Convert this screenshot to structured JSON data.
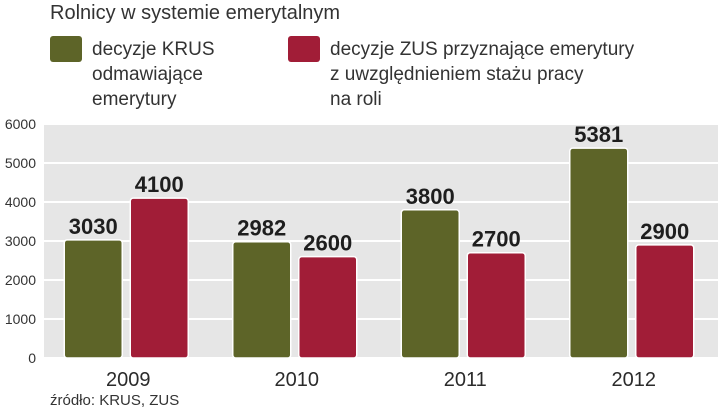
{
  "chart_data": {
    "type": "bar",
    "title": "Rolnicy w systemie emerytalnym",
    "categories": [
      "2009",
      "2010",
      "2011",
      "2012"
    ],
    "series": [
      {
        "name": "decyzje KRUS\nodmawiające\nemerytury",
        "color": "#5d6428",
        "values": [
          3030,
          2982,
          3800,
          5381
        ]
      },
      {
        "name": "decyzje ZUS przyznające emerytury\nz uwzględnieniem stażu pracy\nna roli",
        "color": "#a11d37",
        "values": [
          4100,
          2600,
          2700,
          2900
        ]
      }
    ],
    "y_ticks": [
      0,
      1000,
      2000,
      3000,
      4000,
      5000,
      6000
    ],
    "ylim": [
      0,
      6000
    ],
    "grid": true,
    "legend": "top",
    "source": "źródło: KRUS, ZUS"
  }
}
